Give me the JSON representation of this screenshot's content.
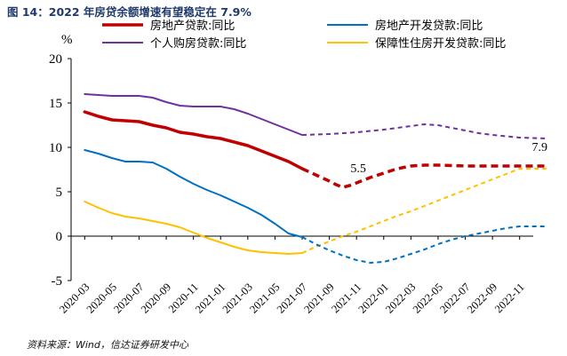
{
  "figure": {
    "title": "图 14：2022 年房贷余额增速有望稳定在 7.9%",
    "source": "资料来源：Wind，信达证券研发中心"
  },
  "chart_data": {
    "type": "line",
    "title": "2022 年房贷余额增速有望稳定在 7.9%",
    "ylabel": "%",
    "xlabel": "",
    "ylim": [
      -5,
      20
    ],
    "yticks": [
      20,
      15,
      10,
      5,
      0,
      -5
    ],
    "categories": [
      "2020-03",
      "2020-05",
      "2020-07",
      "2020-09",
      "2020-11",
      "2021-01",
      "2021-03",
      "2021-05",
      "2021-07",
      "2021-09",
      "2021-11",
      "2022-01",
      "2022-03",
      "2022-05",
      "2022-07",
      "2022-09",
      "2022-11"
    ],
    "legend_position": "top",
    "series": [
      {
        "name": "房地产贷款:同比",
        "color": "#c00000",
        "width": 3.5,
        "x": [
          0,
          0.5,
          1,
          1.5,
          2,
          2.5,
          3,
          3.5,
          4,
          4.5,
          5,
          5.5,
          6,
          6.5,
          7,
          7.5,
          8,
          8.5,
          9,
          9.25,
          9.5,
          9.75,
          10,
          10.5,
          11,
          11.5,
          12,
          12.5,
          13,
          13.5,
          14,
          14.5,
          15,
          15.5,
          16,
          16.5,
          17
        ],
        "values": [
          14.0,
          13.5,
          13.1,
          13.0,
          12.9,
          12.5,
          12.2,
          11.7,
          11.5,
          11.2,
          11.0,
          10.6,
          10.2,
          9.6,
          9.0,
          8.4,
          7.6,
          null,
          null,
          null,
          null,
          null,
          null,
          null,
          null,
          null,
          null,
          null,
          null,
          null,
          null,
          null,
          null,
          null,
          null,
          null,
          null
        ],
        "projection": [
          null,
          null,
          null,
          null,
          null,
          null,
          null,
          null,
          null,
          null,
          null,
          null,
          null,
          null,
          null,
          null,
          7.6,
          6.9,
          6.2,
          5.8,
          5.5,
          5.7,
          6.0,
          6.6,
          7.1,
          7.6,
          7.9,
          8.0,
          8.0,
          7.95,
          7.9,
          7.9,
          7.9,
          7.9,
          7.9,
          7.9,
          7.9
        ]
      },
      {
        "name": "个人购房贷款:同比",
        "color": "#7030a0",
        "width": 2,
        "x": [
          0,
          0.5,
          1,
          1.5,
          2,
          2.5,
          3,
          3.5,
          4,
          4.5,
          5,
          5.5,
          6,
          6.5,
          7,
          7.5,
          8,
          8.5,
          9,
          9.5,
          10,
          10.5,
          11,
          11.5,
          12,
          12.5,
          13,
          13.5,
          14,
          14.5,
          15,
          15.5,
          16,
          16.5,
          17
        ],
        "values": [
          16.0,
          15.9,
          15.8,
          15.8,
          15.8,
          15.6,
          15.1,
          14.7,
          14.6,
          14.6,
          14.6,
          14.3,
          13.8,
          13.2,
          12.6,
          12.0,
          11.4,
          null,
          null,
          null,
          null,
          null,
          null,
          null,
          null,
          null,
          null,
          null,
          null,
          null,
          null,
          null,
          null,
          null,
          null
        ],
        "projection": [
          null,
          null,
          null,
          null,
          null,
          null,
          null,
          null,
          null,
          null,
          null,
          null,
          null,
          null,
          null,
          null,
          11.4,
          11.45,
          11.5,
          11.6,
          11.7,
          11.85,
          12.0,
          12.2,
          12.4,
          12.6,
          12.5,
          12.2,
          11.9,
          11.6,
          11.4,
          11.25,
          11.1,
          11.05,
          11.0
        ]
      },
      {
        "name": "房地产开发贷款:同比",
        "color": "#0070c0",
        "width": 2,
        "x": [
          0,
          0.5,
          1,
          1.5,
          2,
          2.5,
          3,
          3.5,
          4,
          4.5,
          5,
          5.5,
          6,
          6.5,
          7,
          7.5,
          8,
          8.5,
          9,
          9.5,
          10,
          10.5,
          11,
          11.5,
          12,
          12.5,
          13,
          13.5,
          14,
          14.5,
          15,
          15.5,
          16,
          16.5,
          17
        ],
        "values": [
          9.7,
          9.3,
          8.8,
          8.4,
          8.4,
          8.3,
          7.6,
          6.7,
          5.9,
          5.2,
          4.6,
          3.9,
          3.2,
          2.4,
          1.4,
          0.3,
          -0.1,
          null,
          null,
          null,
          null,
          null,
          null,
          null,
          null,
          null,
          null,
          null,
          null,
          null,
          null,
          null,
          null,
          null,
          null
        ],
        "projection": [
          null,
          null,
          null,
          null,
          null,
          null,
          null,
          null,
          null,
          null,
          null,
          null,
          null,
          null,
          null,
          null,
          -0.1,
          -0.9,
          -1.6,
          -2.2,
          -2.7,
          -3.0,
          -2.9,
          -2.5,
          -2.0,
          -1.5,
          -0.9,
          -0.4,
          0.0,
          0.3,
          0.6,
          0.9,
          1.1,
          1.1,
          1.1
        ]
      },
      {
        "name": "保障性住房开发贷款:同比",
        "color": "#ffc000",
        "width": 2,
        "x": [
          0,
          0.5,
          1,
          1.5,
          2,
          2.5,
          3,
          3.5,
          4,
          4.5,
          5,
          5.5,
          6,
          6.5,
          7,
          7.5,
          8,
          8.5,
          9,
          9.5,
          10,
          10.5,
          11,
          11.5,
          12,
          12.5,
          13,
          13.5,
          14,
          14.5,
          15,
          15.5,
          16,
          16.5,
          17
        ],
        "values": [
          3.9,
          3.2,
          2.6,
          2.2,
          2.0,
          1.7,
          1.4,
          1.0,
          0.4,
          -0.2,
          -0.7,
          -1.2,
          -1.6,
          -1.8,
          -1.9,
          -2.0,
          -1.9,
          null,
          null,
          null,
          null,
          null,
          null,
          null,
          null,
          null,
          null,
          null,
          null,
          null,
          null,
          null,
          null,
          null,
          null
        ],
        "projection": [
          null,
          null,
          null,
          null,
          null,
          null,
          null,
          null,
          null,
          null,
          null,
          null,
          null,
          null,
          null,
          null,
          -1.9,
          -1.2,
          -0.6,
          0.0,
          0.5,
          1.1,
          1.7,
          2.3,
          2.8,
          3.4,
          4.0,
          4.6,
          5.2,
          5.8,
          6.4,
          7.0,
          7.6,
          7.6,
          7.6
        ]
      }
    ],
    "annotations": [
      {
        "text": "5.5",
        "x": 10,
        "y": 5.5
      },
      {
        "text": "7.9",
        "x": 17,
        "y": 7.9
      }
    ]
  }
}
